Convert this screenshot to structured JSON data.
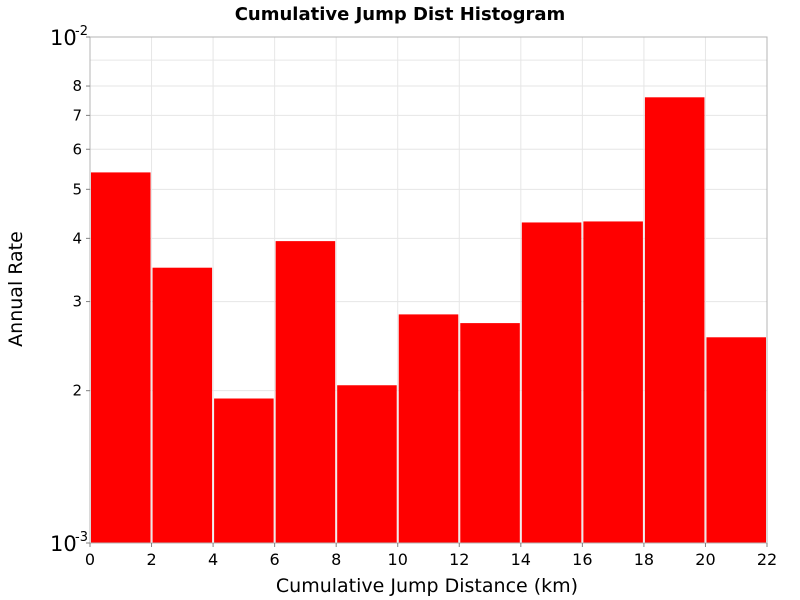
{
  "chart_data": {
    "type": "bar",
    "title": "Cumulative Jump Dist Histogram",
    "xlabel": "Cumulative Jump Distance (km)",
    "ylabel": "Annual Rate",
    "xlim": [
      0,
      22
    ],
    "ylim": [
      0.001,
      0.01
    ],
    "yscale": "log",
    "grid": true,
    "bar_color": "#ff0000",
    "bin_width": 2,
    "x_ticks": [
      0,
      2,
      4,
      6,
      8,
      10,
      12,
      14,
      16,
      18,
      20,
      22
    ],
    "y_minor_tick_labels": [
      {
        "value": 0.002,
        "label": "2"
      },
      {
        "value": 0.003,
        "label": "3"
      },
      {
        "value": 0.004,
        "label": "4"
      },
      {
        "value": 0.005,
        "label": "5"
      },
      {
        "value": 0.006,
        "label": "6"
      },
      {
        "value": 0.007,
        "label": "7"
      },
      {
        "value": 0.008,
        "label": "8"
      }
    ],
    "y_major_tick_labels": [
      {
        "value": 0.001,
        "base": "10",
        "exponent": "-3"
      },
      {
        "value": 0.01,
        "base": "10",
        "exponent": "-2"
      }
    ],
    "bins": [
      {
        "x_start": 0,
        "x_end": 2,
        "value": 0.0054
      },
      {
        "x_start": 2,
        "x_end": 4,
        "value": 0.0035
      },
      {
        "x_start": 4,
        "x_end": 6,
        "value": 0.00193
      },
      {
        "x_start": 6,
        "x_end": 8,
        "value": 0.00395
      },
      {
        "x_start": 8,
        "x_end": 10,
        "value": 0.00205
      },
      {
        "x_start": 10,
        "x_end": 12,
        "value": 0.00283
      },
      {
        "x_start": 12,
        "x_end": 14,
        "value": 0.00272
      },
      {
        "x_start": 14,
        "x_end": 16,
        "value": 0.0043
      },
      {
        "x_start": 16,
        "x_end": 18,
        "value": 0.00432
      },
      {
        "x_start": 18,
        "x_end": 20,
        "value": 0.0076
      },
      {
        "x_start": 20,
        "x_end": 22,
        "value": 0.00255
      }
    ]
  }
}
